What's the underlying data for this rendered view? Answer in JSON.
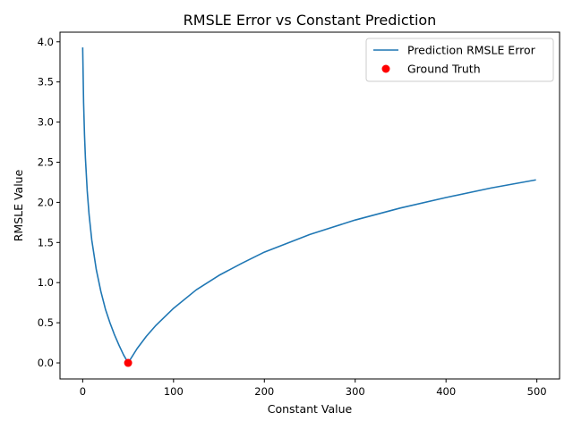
{
  "chart_data": {
    "type": "line",
    "title": "RMSLE Error vs Constant Prediction",
    "xlabel": "Constant Value",
    "ylabel": "RMSLE Value",
    "xlim": [
      -25,
      525
    ],
    "ylim": [
      -0.2,
      4.12
    ],
    "xticks": [
      0,
      100,
      200,
      300,
      400,
      500
    ],
    "yticks": [
      0.0,
      0.5,
      1.0,
      1.5,
      2.0,
      2.5,
      3.0,
      3.5,
      4.0
    ],
    "grid": false,
    "legend": "top-right",
    "series": [
      {
        "name": "Prediction RMSLE Error",
        "color": "#1f77b4",
        "x": [
          0,
          1,
          2,
          3,
          5,
          7,
          10,
          15,
          20,
          25,
          30,
          35,
          40,
          45,
          50,
          60,
          70,
          80,
          100,
          125,
          150,
          175,
          200,
          250,
          300,
          350,
          400,
          450,
          499
        ],
        "y": [
          3.93,
          3.24,
          2.84,
          2.55,
          2.14,
          1.85,
          1.53,
          1.16,
          0.89,
          0.67,
          0.5,
          0.35,
          0.22,
          0.1,
          0.0,
          0.18,
          0.33,
          0.46,
          0.68,
          0.91,
          1.09,
          1.24,
          1.38,
          1.6,
          1.78,
          1.93,
          2.06,
          2.18,
          2.28
        ]
      },
      {
        "name": "Ground Truth",
        "color": "#ff0000",
        "x": [
          50
        ],
        "y": [
          0.0
        ]
      }
    ]
  }
}
